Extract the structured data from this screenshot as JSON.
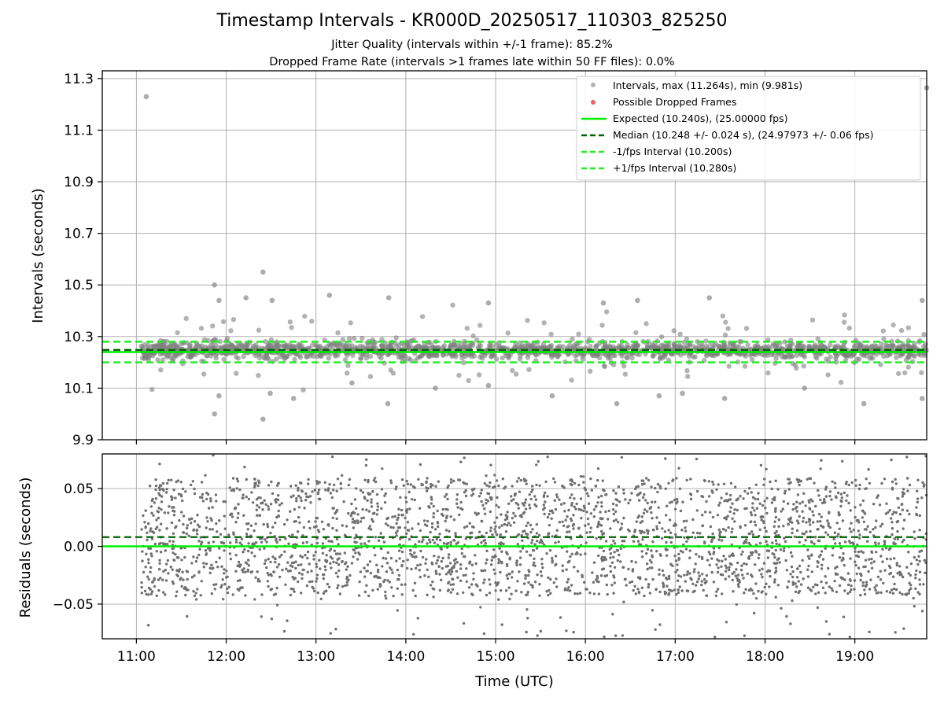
{
  "chart_data": [
    {
      "type": "scatter",
      "title": "Timestamp Intervals - KR000D_20250517_110303_825250",
      "subtitle_lines": [
        "Jitter Quality (intervals within +/-1 frame): 85.2%",
        "Dropped Frame Rate (intervals >1 frames late within 50 FF files): 0.0%"
      ],
      "ylabel": "Intervals (seconds)",
      "ylim": [
        9.9,
        11.33
      ],
      "yticks": [
        9.9,
        10.1,
        10.3,
        10.5,
        10.7,
        10.9,
        11.1,
        11.3
      ],
      "ytick_labels": [
        "9.9",
        "10.1",
        "10.3",
        "10.5",
        "10.7",
        "10.9",
        "11.1",
        "11.3"
      ],
      "x_range_hours": [
        10.62,
        19.8
      ],
      "grid": true,
      "legend_position": "top-right",
      "legend": [
        "Intervals, max (11.264s), min (9.981s)",
        "Possible Dropped Frames",
        "Expected (10.240s), (25.00000 fps)",
        "Median (10.248 +/- 0.024 s), (24.97973 +/- 0.06 fps)",
        "-1/fps Interval (10.200s)",
        "+1/fps Interval (10.280s)"
      ],
      "reference_lines": {
        "expected": 10.24,
        "median": 10.248,
        "minus_one_fps": 10.2,
        "plus_one_fps": 10.28
      },
      "data_start_hour": 11.05,
      "data_end_hour": 19.8,
      "points_interval_s": 10.248,
      "points_spread_s": 0.024,
      "outliers": [
        [
          11.11,
          11.23
        ],
        [
          19.8,
          11.264
        ],
        [
          11.87,
          10.5
        ],
        [
          12.41,
          10.55
        ],
        [
          11.92,
          10.44
        ],
        [
          12.22,
          10.45
        ],
        [
          12.51,
          10.44
        ],
        [
          13.15,
          10.46
        ],
        [
          13.81,
          10.45
        ],
        [
          14.92,
          10.43
        ],
        [
          16.2,
          10.43
        ],
        [
          16.58,
          10.44
        ],
        [
          17.38,
          10.45
        ],
        [
          19.75,
          10.44
        ],
        [
          12.41,
          9.98
        ],
        [
          11.87,
          10.0
        ],
        [
          11.92,
          10.07
        ],
        [
          12.49,
          10.08
        ],
        [
          12.75,
          10.06
        ],
        [
          13.4,
          10.12
        ],
        [
          13.8,
          10.04
        ],
        [
          14.33,
          10.1
        ],
        [
          14.92,
          10.11
        ],
        [
          15.63,
          10.07
        ],
        [
          16.35,
          10.04
        ],
        [
          16.82,
          10.07
        ],
        [
          17.08,
          10.08
        ],
        [
          17.55,
          10.06
        ],
        [
          18.44,
          10.1
        ],
        [
          19.1,
          10.04
        ],
        [
          19.75,
          10.06
        ]
      ]
    },
    {
      "type": "scatter",
      "ylabel": "Residuals (seconds)",
      "xlabel": "Time (UTC)",
      "ylim": [
        -0.08,
        0.08
      ],
      "yticks": [
        -0.05,
        0.0,
        0.05
      ],
      "ytick_labels": [
        "−0.05",
        "0.00",
        "0.05"
      ],
      "xticks_hours": [
        11,
        12,
        13,
        14,
        15,
        16,
        17,
        18,
        19
      ],
      "xtick_labels": [
        "11:00",
        "12:00",
        "13:00",
        "14:00",
        "15:00",
        "16:00",
        "17:00",
        "18:00",
        "19:00"
      ],
      "x_range_hours": [
        10.62,
        19.8
      ],
      "grid": true,
      "reference_lines": {
        "expected": 0.0,
        "median": 0.008
      },
      "residual_spread": 0.03,
      "point_count": 2800
    }
  ],
  "colors": {
    "expected": "#00ee00",
    "median": "#006400",
    "fps_bounds": "#22ee22",
    "intervals": "#808080",
    "dropped": "#f06060",
    "grid": "#b0b0b0"
  }
}
